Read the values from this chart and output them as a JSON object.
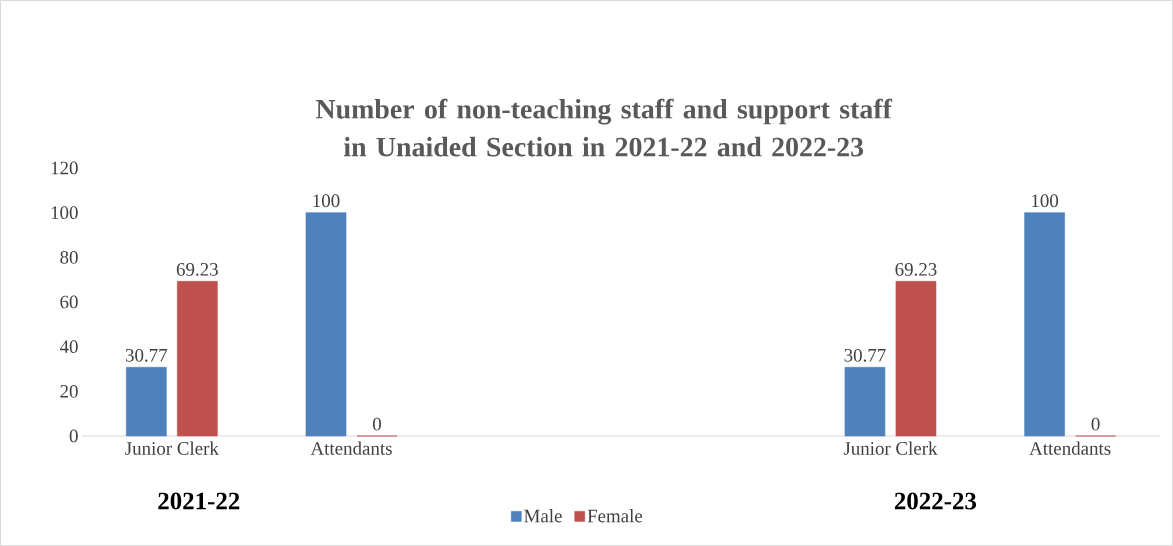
{
  "chart_data": {
    "type": "bar",
    "title": "Number of non-teaching staff and support staff in Unaided Section in 2021-22 and 2022-23",
    "categories": [
      "Junior Clerk",
      "Attendants",
      null,
      null,
      "Junior Clerk",
      "Attendants"
    ],
    "series": [
      {
        "name": "Male",
        "color": "#4f81bd",
        "values": [
          30.77,
          100,
          null,
          null,
          30.77,
          100
        ]
      },
      {
        "name": "Female",
        "color": "#c0504d",
        "values": [
          69.23,
          0,
          null,
          null,
          69.23,
          0
        ]
      }
    ],
    "ylim": [
      0,
      120
    ],
    "yticks": [
      0,
      20,
      40,
      60,
      80,
      100,
      120
    ],
    "data_labels": true,
    "legend": "bottom",
    "annotations": [
      "2021-22",
      "2022-23"
    ]
  }
}
